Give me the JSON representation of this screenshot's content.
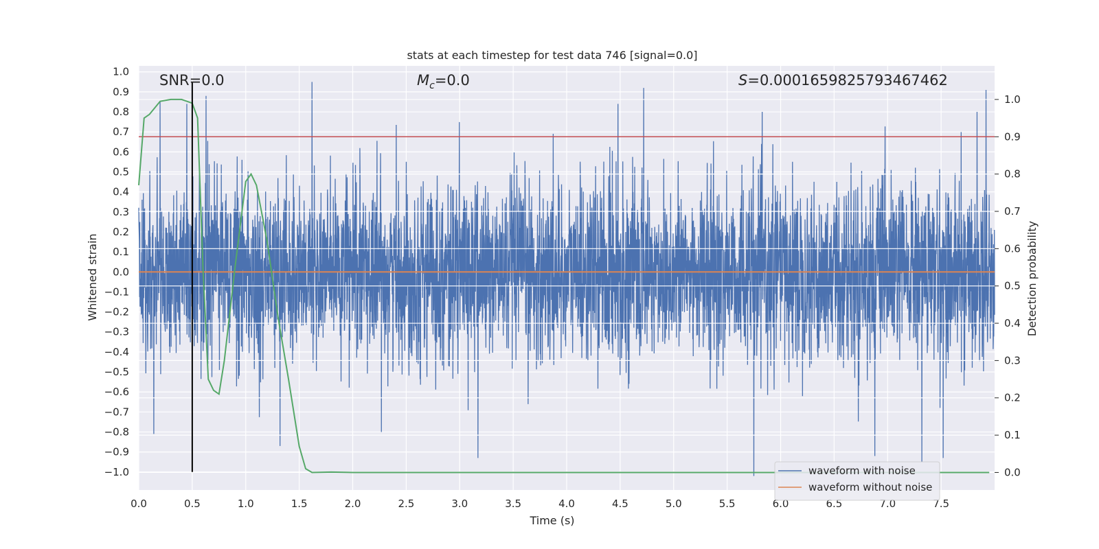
{
  "chart_data": {
    "type": "line",
    "title": "stats at each timestep for test data 746 [signal=0.0]",
    "xlabel": "Time (s)",
    "ylabel_left": "Whitened strain",
    "ylabel_right": "Detection probability",
    "xlim": [
      0.0,
      8.0
    ],
    "ylim_left": [
      -1.09,
      1.03
    ],
    "ylim_right": [
      -0.047,
      1.09
    ],
    "grid": true,
    "x_ticks": [
      "0.0",
      "0.5",
      "1.0",
      "1.5",
      "2.0",
      "2.5",
      "3.0",
      "3.5",
      "4.0",
      "4.5",
      "5.0",
      "5.5",
      "6.0",
      "6.5",
      "7.0",
      "7.5"
    ],
    "y_ticks_left": [
      "1.0",
      "0.9",
      "0.8",
      "0.7",
      "0.6",
      "0.5",
      "0.4",
      "0.3",
      "0.2",
      "0.1",
      "0.0",
      "-0.1",
      "-0.2",
      "-0.3",
      "-0.4",
      "-0.5",
      "-0.6",
      "-0.7",
      "-0.8",
      "-0.9",
      "-1.0"
    ],
    "y_ticks_right": [
      "1.0",
      "0.9",
      "0.8",
      "0.7",
      "0.6",
      "0.5",
      "0.4",
      "0.3",
      "0.2",
      "0.1",
      "0.0"
    ],
    "annotations": {
      "snr": "SNR=0.0",
      "mc_symbol": "M",
      "mc_sub": "c",
      "mc_value": "=0.0",
      "s_symbol": "S",
      "s_value": "=0.0001659825793467462"
    },
    "legend": {
      "location": "lower right",
      "entries": [
        "waveform with noise",
        "waveform without noise"
      ]
    },
    "threshold_right": 0.9,
    "marker_time": 0.5,
    "series": [
      {
        "name": "waveform with noise",
        "axis": "left",
        "color": "#4c72b0",
        "kind": "noise",
        "samples": 4096,
        "envelope_sigma": 0.22,
        "peaks": [
          {
            "x": 0.2,
            "y": 0.85
          },
          {
            "x": 0.45,
            "y": 0.84
          },
          {
            "x": 0.63,
            "y": 0.88
          },
          {
            "x": 1.62,
            "y": 0.95
          },
          {
            "x": 4.48,
            "y": 0.84
          },
          {
            "x": 4.72,
            "y": 0.92
          },
          {
            "x": 7.92,
            "y": 0.91
          },
          {
            "x": 0.14,
            "y": -0.81
          },
          {
            "x": 3.17,
            "y": -0.93
          },
          {
            "x": 5.75,
            "y": -1.02
          },
          {
            "x": 6.88,
            "y": -0.92
          },
          {
            "x": 7.32,
            "y": -0.95
          },
          {
            "x": 7.52,
            "y": -0.93
          },
          {
            "x": 1.32,
            "y": -0.87
          }
        ]
      },
      {
        "name": "waveform without noise",
        "axis": "left",
        "color": "#dd8452",
        "x": [
          0.0,
          8.0
        ],
        "y": [
          0.0,
          0.0
        ]
      },
      {
        "name": "detection probability",
        "axis": "right",
        "color": "#55a868",
        "x": [
          0.0,
          0.05,
          0.1,
          0.2,
          0.3,
          0.4,
          0.5,
          0.55,
          0.6,
          0.65,
          0.7,
          0.75,
          0.8,
          0.9,
          1.0,
          1.05,
          1.1,
          1.2,
          1.3,
          1.4,
          1.5,
          1.56,
          1.62,
          1.8,
          2.0,
          3.0,
          4.0,
          5.0,
          6.0,
          7.0,
          7.95
        ],
        "y": [
          0.77,
          0.95,
          0.96,
          0.995,
          1.0,
          1.0,
          0.99,
          0.95,
          0.55,
          0.25,
          0.22,
          0.21,
          0.3,
          0.55,
          0.78,
          0.8,
          0.77,
          0.62,
          0.42,
          0.25,
          0.07,
          0.01,
          0.0,
          0.001,
          0.0,
          0.0,
          0.0,
          0.0,
          0.0,
          0.0,
          0.0
        ]
      }
    ]
  }
}
